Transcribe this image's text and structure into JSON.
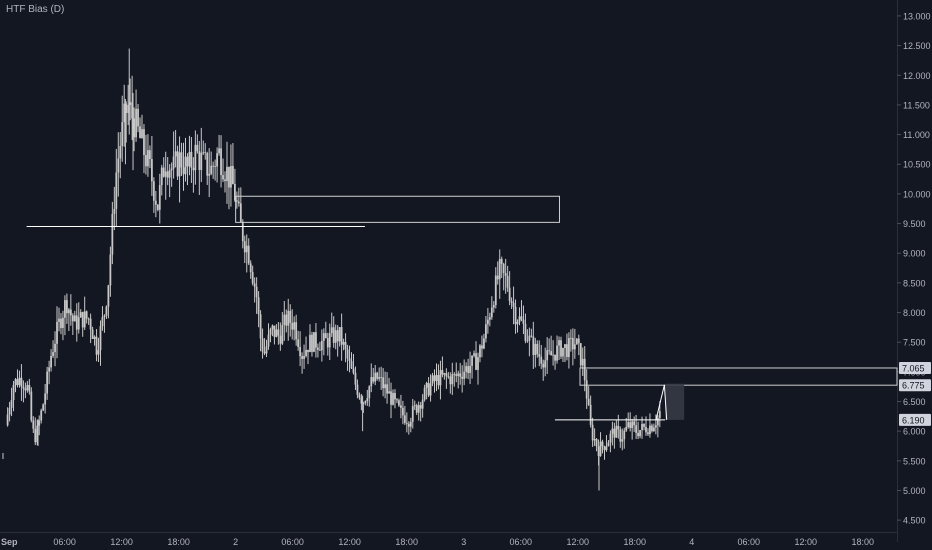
{
  "indicator_label": "HTF Bias (D)",
  "colors": {
    "background": "#131722",
    "candle": "#c8c8c8",
    "line": "#ffffff",
    "box_border": "#d0d0d0",
    "axis_text": "#b2b5be",
    "label_bg": "#d1d4dc",
    "label_text": "#131722",
    "ghost_fill": "#363a45"
  },
  "chart_data": {
    "type": "candlestick",
    "title": "",
    "xlabel": "",
    "ylabel": "",
    "ylim": [
      4.3,
      13.1
    ],
    "xlim": [
      -1,
      117
    ],
    "y_ticks": [
      "4.500",
      "5.000",
      "5.500",
      "6.000",
      "6.500",
      "7.000",
      "7.500",
      "8.000",
      "8.500",
      "9.000",
      "9.500",
      "10.000",
      "10.500",
      "11.000",
      "11.500",
      "12.000",
      "12.500",
      "13.000"
    ],
    "x_ticks": [
      {
        "label": "Sep",
        "x": 0,
        "bold": true
      },
      {
        "label": "06:00",
        "x": 7.5
      },
      {
        "label": "12:00",
        "x": 15
      },
      {
        "label": "18:00",
        "x": 22.5
      },
      {
        "label": "2",
        "x": 30
      },
      {
        "label": "06:00",
        "x": 37.5
      },
      {
        "label": "12:00",
        "x": 45
      },
      {
        "label": "18:00",
        "x": 52.5
      },
      {
        "label": "3",
        "x": 60
      },
      {
        "label": "06:00",
        "x": 67.5
      },
      {
        "label": "12:00",
        "x": 75
      },
      {
        "label": "18:00",
        "x": 82.5
      },
      {
        "label": "4",
        "x": 90
      },
      {
        "label": "06:00",
        "x": 97.5
      },
      {
        "label": "12:00",
        "x": 105
      },
      {
        "label": "18:00",
        "x": 112.5
      }
    ],
    "price_path": [
      [
        0,
        6.1
      ],
      [
        1,
        6.8
      ],
      [
        2,
        6.9
      ],
      [
        3,
        6.7
      ],
      [
        3.5,
        6.0
      ],
      [
        4,
        5.9
      ],
      [
        5,
        6.5
      ],
      [
        6,
        7.3
      ],
      [
        7,
        7.8
      ],
      [
        8,
        8.2
      ],
      [
        9,
        7.8
      ],
      [
        10,
        7.9
      ],
      [
        11,
        7.9
      ],
      [
        12,
        7.4
      ],
      [
        13,
        8.0
      ],
      [
        13.5,
        8.5
      ],
      [
        14,
        9.4
      ],
      [
        14.5,
        10.3
      ],
      [
        15,
        10.8
      ],
      [
        16,
        11.5
      ],
      [
        17,
        11.2
      ],
      [
        18,
        10.8
      ],
      [
        19,
        10.4
      ],
      [
        20,
        9.8
      ],
      [
        21,
        10.6
      ],
      [
        22,
        10.4
      ],
      [
        23,
        10.6
      ],
      [
        24,
        10.4
      ],
      [
        25,
        10.7
      ],
      [
        26,
        10.5
      ],
      [
        27,
        10.4
      ],
      [
        28,
        10.7
      ],
      [
        29,
        10.4
      ],
      [
        30,
        10.1
      ],
      [
        31,
        9.4
      ],
      [
        32,
        9.0
      ],
      [
        33,
        8.3
      ],
      [
        33.5,
        7.6
      ],
      [
        34,
        7.3
      ],
      [
        35,
        7.7
      ],
      [
        36,
        7.6
      ],
      [
        37,
        7.9
      ],
      [
        38,
        7.8
      ],
      [
        39,
        7.3
      ],
      [
        40,
        7.5
      ],
      [
        41,
        7.5
      ],
      [
        42,
        7.5
      ],
      [
        43,
        7.6
      ],
      [
        44,
        7.6
      ],
      [
        45,
        7.2
      ],
      [
        46,
        6.8
      ],
      [
        47,
        6.5
      ],
      [
        48,
        6.8
      ],
      [
        49,
        6.9
      ],
      [
        50,
        6.7
      ],
      [
        51,
        6.5
      ],
      [
        52,
        6.3
      ],
      [
        53,
        6.2
      ],
      [
        54,
        6.4
      ],
      [
        55,
        6.6
      ],
      [
        56,
        6.8
      ],
      [
        57,
        6.9
      ],
      [
        58,
        6.9
      ],
      [
        59,
        6.9
      ],
      [
        60,
        7.0
      ],
      [
        61,
        7.1
      ],
      [
        62,
        7.2
      ],
      [
        63,
        7.6
      ],
      [
        64,
        8.2
      ],
      [
        65,
        8.7
      ],
      [
        66,
        8.5
      ],
      [
        67,
        8.0
      ],
      [
        68,
        7.8
      ],
      [
        69,
        7.5
      ],
      [
        70,
        7.3
      ],
      [
        71,
        7.2
      ],
      [
        72,
        7.3
      ],
      [
        73,
        7.4
      ],
      [
        74,
        7.4
      ],
      [
        75,
        7.5
      ],
      [
        76,
        7.1
      ],
      [
        77,
        6.0
      ],
      [
        78,
        5.7
      ],
      [
        79,
        5.8
      ],
      [
        80,
        6.0
      ],
      [
        81,
        5.9
      ],
      [
        82,
        6.1
      ],
      [
        83,
        6.0
      ],
      [
        84,
        6.05
      ],
      [
        85,
        6.1
      ],
      [
        86,
        6.25
      ],
      [
        86.5,
        6.78
      ]
    ],
    "spikes": [
      [
        16,
        12.45,
        11.0
      ],
      [
        16.5,
        11.7,
        10.4
      ],
      [
        15.5,
        11.6,
        10.5
      ],
      [
        77.8,
        5.0,
        5.6
      ],
      [
        46.7,
        6.0,
        6.6
      ],
      [
        4,
        5.75,
        6.2
      ]
    ],
    "horizontal_lines": [
      {
        "y": 9.45,
        "x1": 2.5,
        "x2": 47
      },
      {
        "y": 6.19,
        "x1": 72,
        "x2": 86.5
      }
    ],
    "rectangles": [
      {
        "y1": 9.52,
        "y2": 9.96,
        "x1": 30,
        "x2": 72.6
      },
      {
        "y1": 6.775,
        "y2": 7.065,
        "x1": 75.3,
        "x2": 117
      }
    ],
    "projection": {
      "x1": 85.3,
      "y1": 6.19,
      "x2": 86.4,
      "y2": 6.78
    },
    "ghost_box": {
      "x1": 86.5,
      "x2": 89,
      "y1": 6.19,
      "y2": 6.8
    },
    "price_labels": [
      "7.065",
      "6.775",
      "6.190"
    ]
  }
}
